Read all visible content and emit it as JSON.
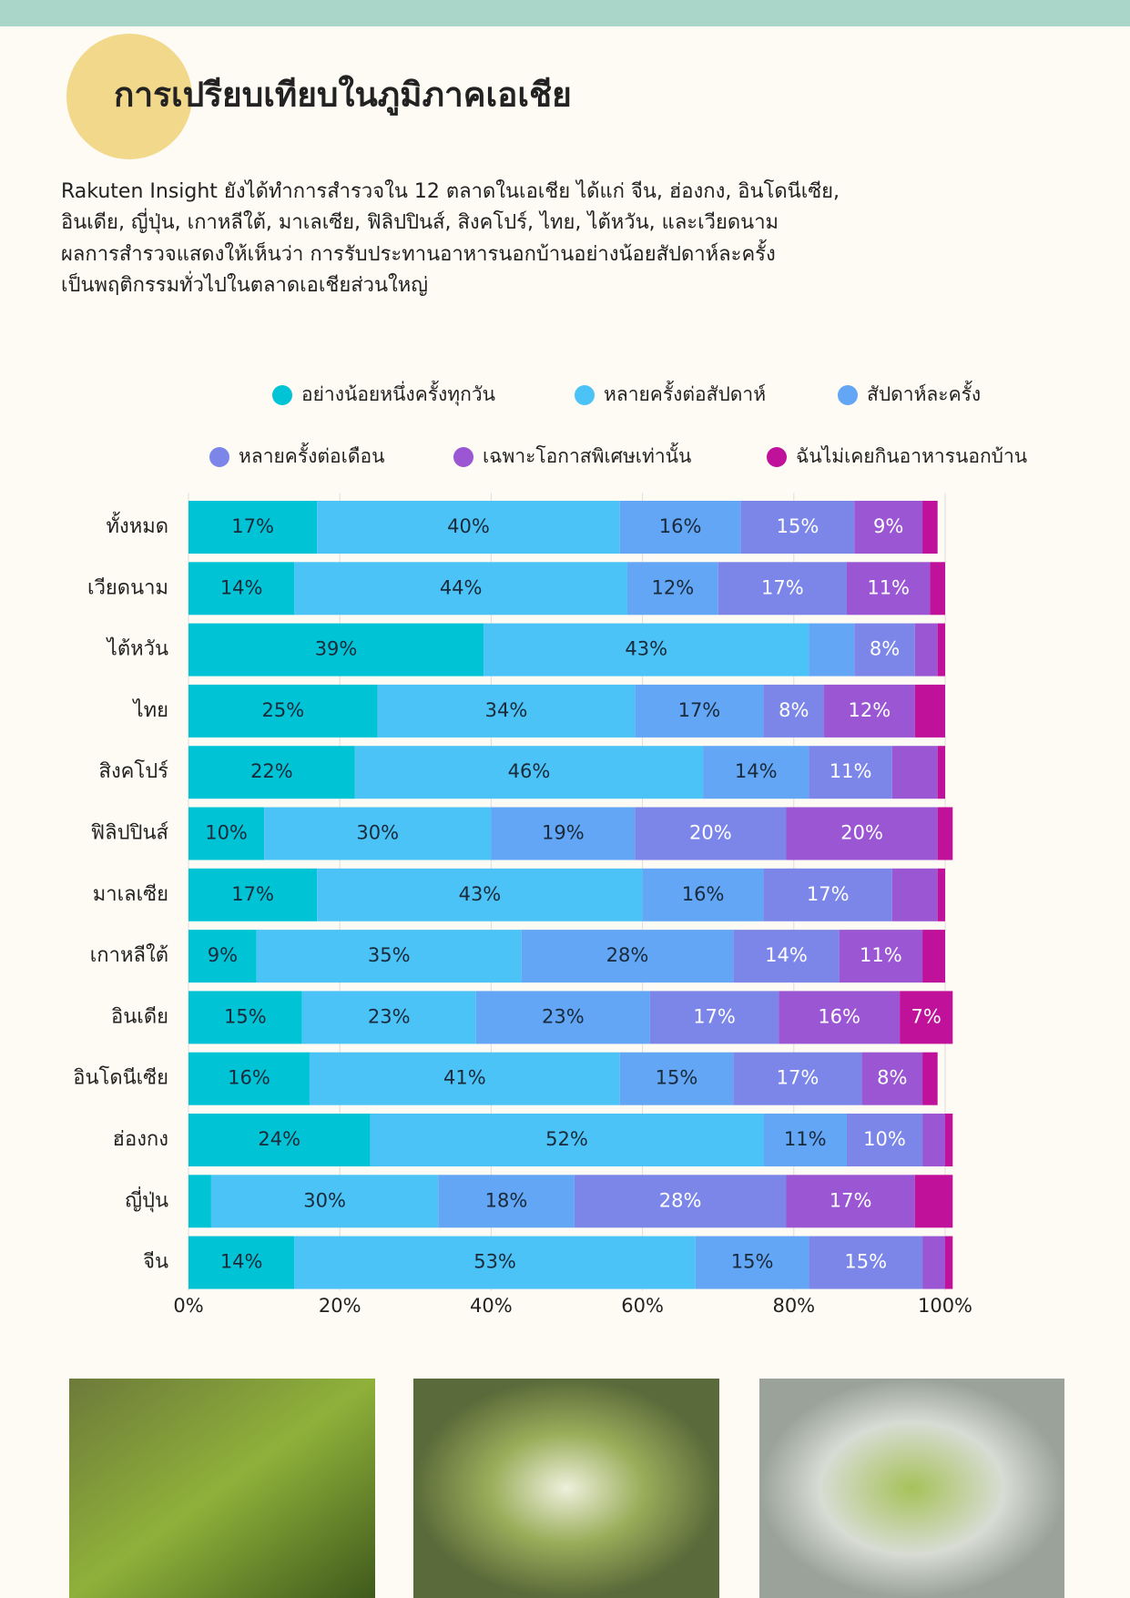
{
  "header": {
    "title": "การเปรียบเทียบในภูมิภาคเอเชีย"
  },
  "paragraph": [
    "Rakuten Insight ยังได้ทำการสำรวจใน 12 ตลาดในเอเชีย ได้แก่ จีน, ฮ่องกง, อินโดนีเซีย,",
    "อินเดีย, ญี่ปุ่น, เกาหลีใต้, มาเลเซีย, ฟิลิปปินส์, สิงคโปร์, ไทย, ไต้หวัน, และเวียดนาม",
    "ผลการสำรวจแสดงให้เห็นว่า การรับประทานอาหารนอกบ้านอย่างน้อยสัปดาห์ละครั้ง",
    "เป็นพฤติกรรมทั่วไปในตลาดเอเชียส่วนใหญ่"
  ],
  "chart_data": {
    "type": "stacked-bar-horizontal",
    "categories": [
      "ทั้งหมด",
      "เวียดนาม",
      "ไต้หวัน",
      "ไทย",
      "สิงคโปร์",
      "ฟิลิปปินส์",
      "มาเลเซีย",
      "เกาหลีใต้",
      "อินเดีย",
      "อินโดนีเซีย",
      "ฮ่องกง",
      "ญี่ปุ่น",
      "จีน"
    ],
    "series": [
      {
        "name": "อย่างน้อยหนึ่งครั้งทุกวัน",
        "color": "#00c4d6",
        "values": [
          17,
          14,
          39,
          25,
          22,
          10,
          17,
          9,
          15,
          16,
          24,
          3,
          14
        ],
        "value_labels": [
          "17%",
          "14%",
          "39%",
          "25%",
          "22%",
          "10%",
          "17%",
          "9%",
          "15%",
          "16%",
          "24%",
          null,
          "14%"
        ]
      },
      {
        "name": "หลายครั้งต่อสัปดาห์",
        "color": "#4cc3f7",
        "values": [
          40,
          44,
          43,
          34,
          46,
          30,
          43,
          35,
          23,
          41,
          52,
          30,
          53
        ],
        "value_labels": [
          "40%",
          "44%",
          "43%",
          "34%",
          "46%",
          "30%",
          "43%",
          "35%",
          "23%",
          "41%",
          "52%",
          "30%",
          "53%"
        ]
      },
      {
        "name": "สัปดาห์ละครั้ง",
        "color": "#62a6f5",
        "values": [
          16,
          12,
          6,
          17,
          14,
          19,
          16,
          28,
          23,
          15,
          11,
          18,
          15
        ],
        "value_labels": [
          "16%",
          "12%",
          null,
          "17%",
          "14%",
          "19%",
          "16%",
          "28%",
          "23%",
          "15%",
          "11%",
          "18%",
          "15%"
        ]
      },
      {
        "name": "หลายครั้งต่อเดือน",
        "color": "#7b86e8",
        "values": [
          15,
          17,
          8,
          8,
          11,
          20,
          17,
          14,
          17,
          17,
          10,
          28,
          15
        ],
        "value_labels": [
          "15%",
          "17%",
          "8%",
          "8%",
          "11%",
          "20%",
          "17%",
          "14%",
          "17%",
          "17%",
          "10%",
          "28%",
          "15%"
        ]
      },
      {
        "name": "เฉพาะโอกาสพิเศษเท่านั้น",
        "color": "#9b57d3",
        "values": [
          9,
          11,
          3,
          12,
          6,
          20,
          6,
          11,
          16,
          8,
          3,
          17,
          3
        ],
        "value_labels": [
          "9%",
          "11%",
          null,
          "12%",
          null,
          "20%",
          null,
          "11%",
          "16%",
          "8%",
          null,
          "17%",
          null
        ]
      },
      {
        "name": "ฉันไม่เคยกินอาหารนอกบ้าน",
        "color": "#c0119b",
        "values": [
          2,
          2,
          1,
          4,
          1,
          2,
          1,
          3,
          7,
          2,
          1,
          5,
          1
        ],
        "value_labels": [
          null,
          null,
          null,
          null,
          null,
          null,
          null,
          null,
          "7%",
          null,
          null,
          null,
          null
        ]
      }
    ],
    "xlim": [
      0,
      100
    ],
    "xticks": [
      {
        "value": 0,
        "label": "0%"
      },
      {
        "value": 20,
        "label": "20%"
      },
      {
        "value": 40,
        "label": "40%"
      },
      {
        "value": 60,
        "label": "60%"
      },
      {
        "value": 80,
        "label": "80%"
      },
      {
        "value": 100,
        "label": "100%"
      }
    ],
    "grid": true
  }
}
